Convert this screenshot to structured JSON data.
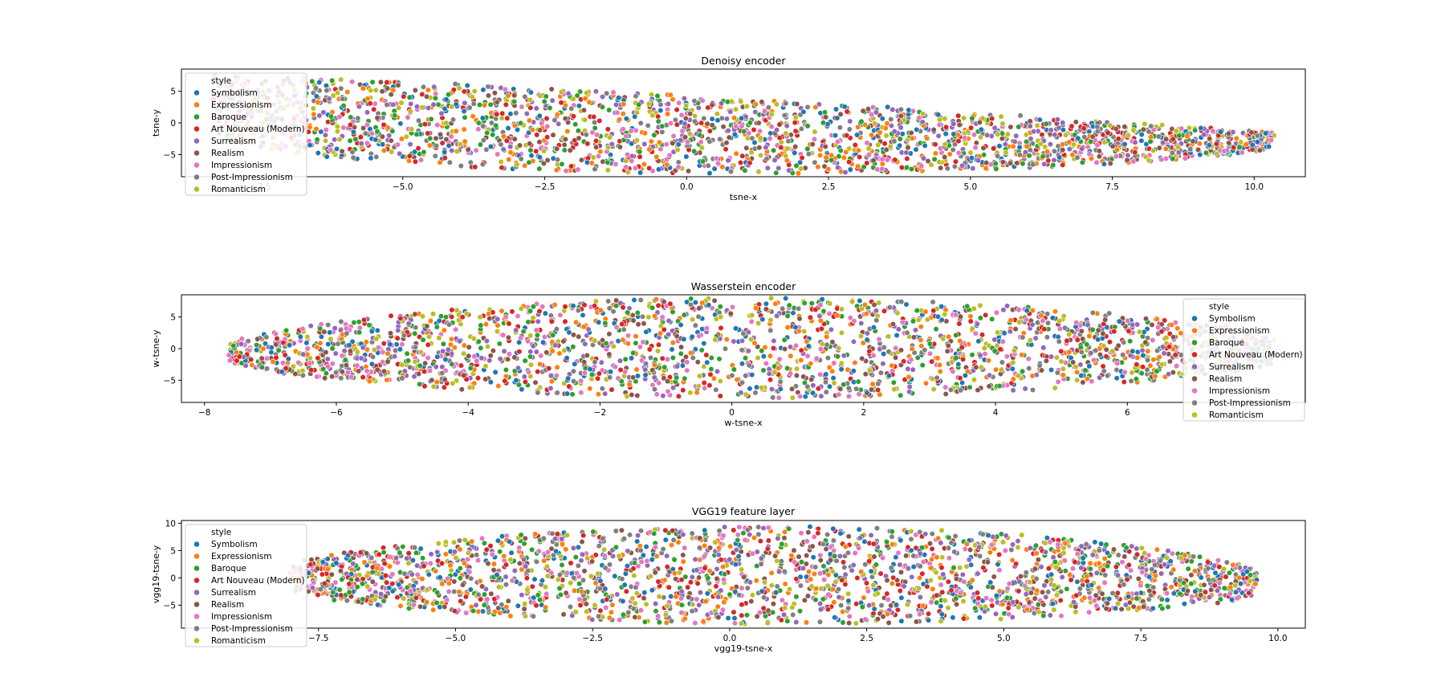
{
  "legend_title": "style",
  "styles": [
    {
      "name": "Symbolism",
      "color": "#1f77b4"
    },
    {
      "name": "Expressionism",
      "color": "#ff7f0e"
    },
    {
      "name": "Baroque",
      "color": "#2ca02c"
    },
    {
      "name": "Art Nouveau (Modern)",
      "color": "#d62728"
    },
    {
      "name": "Surrealism",
      "color": "#9467bd"
    },
    {
      "name": "Realism",
      "color": "#8c564b"
    },
    {
      "name": "Impressionism",
      "color": "#e377c2"
    },
    {
      "name": "Post-Impressionism",
      "color": "#7f7f7f"
    },
    {
      "name": "Romanticism",
      "color": "#bcbd22"
    }
  ],
  "chart_data": [
    {
      "type": "scatter",
      "title": "Denoisy encoder",
      "xlabel": "tsne-x",
      "ylabel": "tsne-y",
      "xlim": [
        -8.9,
        10.9
      ],
      "ylim": [
        -8.5,
        8.5
      ],
      "xticks": [
        -7.5,
        -5.0,
        -2.5,
        0.0,
        2.5,
        5.0,
        7.5,
        10.0
      ],
      "xtick_labels": [
        "−7.5",
        "−5.0",
        "−2.5",
        "0.0",
        "2.5",
        "5.0",
        "7.5",
        "10.0"
      ],
      "yticks": [
        -5,
        0,
        5
      ],
      "ytick_labels": [
        "−5",
        "0",
        "5"
      ],
      "legend_position": "upper left",
      "series": [
        "Symbolism",
        "Expressionism",
        "Baroque",
        "Art Nouveau (Modern)",
        "Surrealism",
        "Realism",
        "Impressionism",
        "Post-Impressionism",
        "Romanticism"
      ],
      "cloud": {
        "x_range": [
          -8.3,
          10.3
        ],
        "y_top_at_left": 7.5,
        "y_top_at_right": -1.5,
        "y_bottom_at_left": -1.5,
        "y_bottom_at_right": -3.5,
        "y_bottom_mid": -8.0,
        "points_per_series": 260
      }
    },
    {
      "type": "scatter",
      "title": "Wasserstein encoder",
      "xlabel": "w-tsne-x",
      "ylabel": "w-tsne-y",
      "xlim": [
        -8.35,
        8.7
      ],
      "ylim": [
        -8.5,
        8.5
      ],
      "xticks": [
        -8,
        -6,
        -4,
        -2,
        0,
        2,
        4,
        6
      ],
      "xtick_labels": [
        "−8",
        "−6",
        "−4",
        "−2",
        "0",
        "2",
        "4",
        "6"
      ],
      "yticks": [
        -5,
        0,
        5
      ],
      "ytick_labels": [
        "−5",
        "0",
        "5"
      ],
      "legend_position": "upper right",
      "series": [
        "Symbolism",
        "Expressionism",
        "Baroque",
        "Art Nouveau (Modern)",
        "Surrealism",
        "Realism",
        "Impressionism",
        "Post-Impressionism",
        "Romanticism"
      ],
      "cloud": {
        "x_range": [
          -7.6,
          8.2
        ],
        "y_top_at_left": 0.5,
        "y_top_peak": 8.0,
        "y_top_at_right": 1.5,
        "y_bottom_at_left": -2.0,
        "y_bottom_peak": -7.8,
        "y_bottom_at_right": -2.0,
        "points_per_series": 260
      }
    },
    {
      "type": "scatter",
      "title": "VGG19 feature layer",
      "xlabel": "vgg19-tsne-x",
      "ylabel": "vgg19-tsne-y",
      "xlim": [
        -10.0,
        10.5
      ],
      "ylim": [
        -9.2,
        10.5
      ],
      "xticks": [
        -7.5,
        -5.0,
        -2.5,
        0.0,
        2.5,
        5.0,
        7.5,
        10.0
      ],
      "xtick_labels": [
        "−7.5",
        "−5.0",
        "−2.5",
        "0.0",
        "2.5",
        "5.0",
        "7.5",
        "10.0"
      ],
      "yticks": [
        -5,
        0,
        5,
        10
      ],
      "ytick_labels": [
        "−5",
        "0",
        "5",
        "10"
      ],
      "legend_position": "upper left",
      "series": [
        "Symbolism",
        "Expressionism",
        "Baroque",
        "Art Nouveau (Modern)",
        "Surrealism",
        "Realism",
        "Impressionism",
        "Post-Impressionism",
        "Romanticism"
      ],
      "cloud": {
        "x_range": [
          -8.0,
          9.6
        ],
        "y_top_at_left": 2.0,
        "y_top_peak": 9.5,
        "y_top_at_right": 1.0,
        "y_bottom_at_left": -2.0,
        "y_bottom_peak": -8.5,
        "y_bottom_at_right": -3.0,
        "points_per_series": 260
      }
    }
  ]
}
